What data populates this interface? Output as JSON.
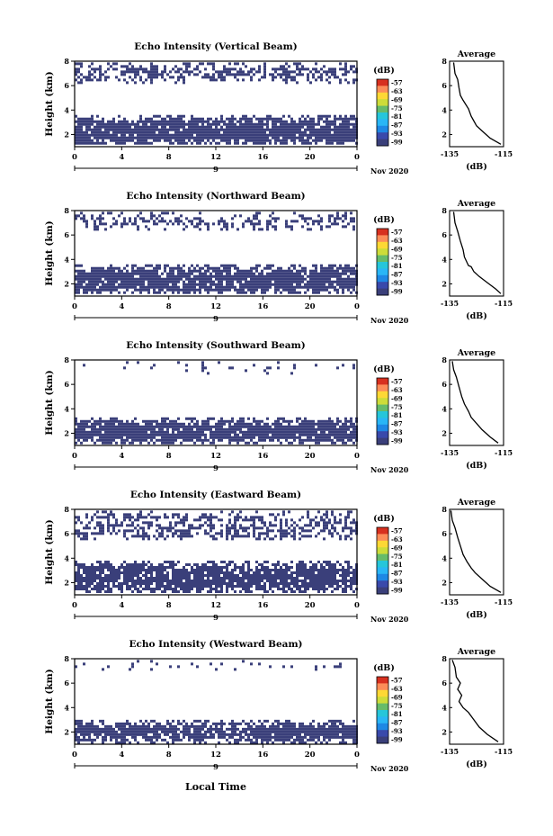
{
  "figure": {
    "xlabel_bottom": "Local Time",
    "date_label": "Nov 2020",
    "day_label": "9",
    "colorbar_unit": "(dB)",
    "colorbar_ticks": [
      "-57",
      "-63",
      "-69",
      "-75",
      "-81",
      "-87",
      "-93",
      "-99"
    ],
    "colorbar_colors": [
      "#d7301f",
      "#fc8d59",
      "#fdd835",
      "#cddc39",
      "#66bb6a",
      "#26c6da",
      "#29b6f6",
      "#1e88e5",
      "#3949ab",
      "#3a3f7a"
    ],
    "echo_color": "#3a3f7a",
    "profile_title": "Average",
    "profile_xticks": [
      "-135",
      "-115"
    ],
    "profile_xlabel": "(dB)"
  },
  "chart_data": [
    {
      "type": "heatmap",
      "title": "Echo Intensity (Vertical Beam)",
      "ylabel": "Height (km)",
      "x_ticks": [
        "0",
        "4",
        "8",
        "12",
        "16",
        "20",
        "0"
      ],
      "y_ticks": [
        "2",
        "4",
        "6",
        "8"
      ],
      "xlim": [
        0,
        24
      ],
      "ylim": [
        1,
        8
      ],
      "echo_layers": [
        {
          "y0": 1.2,
          "y1": 3.6,
          "density": 0.9
        },
        {
          "y0": 6.3,
          "y1": 7.9,
          "density": 0.55
        }
      ],
      "profile": {
        "xlim": [
          -135,
          -115
        ],
        "ylim": [
          1,
          8
        ],
        "x": [
          -133.5,
          -133,
          -132,
          -131.5,
          -131,
          -130,
          -128,
          -127,
          -126,
          -125,
          -123,
          -120,
          -116
        ],
        "y": [
          7.9,
          7.0,
          6.5,
          5.8,
          5.2,
          4.8,
          4.1,
          3.5,
          3.1,
          2.7,
          2.3,
          1.7,
          1.2
        ]
      }
    },
    {
      "type": "heatmap",
      "title": "Echo Intensity (Northward Beam)",
      "ylabel": "Height (km)",
      "x_ticks": [
        "0",
        "4",
        "8",
        "12",
        "16",
        "20",
        "0"
      ],
      "y_ticks": [
        "2",
        "4",
        "6",
        "8"
      ],
      "xlim": [
        0,
        24
      ],
      "ylim": [
        1,
        8
      ],
      "echo_layers": [
        {
          "y0": 1.2,
          "y1": 3.6,
          "density": 0.9
        },
        {
          "y0": 6.5,
          "y1": 7.9,
          "density": 0.45
        }
      ],
      "profile": {
        "xlim": [
          -135,
          -115
        ],
        "ylim": [
          1,
          8
        ],
        "x": [
          -133.5,
          -133,
          -132,
          -131,
          -130,
          -129.5,
          -128,
          -127,
          -126,
          -124,
          -121,
          -118,
          -116
        ],
        "y": [
          7.9,
          7.0,
          6.3,
          5.5,
          4.8,
          4.2,
          3.5,
          3.4,
          3.0,
          2.6,
          2.1,
          1.6,
          1.2
        ]
      }
    },
    {
      "type": "heatmap",
      "title": "Echo Intensity (Southward Beam)",
      "ylabel": "Height (km)",
      "x_ticks": [
        "0",
        "4",
        "8",
        "12",
        "16",
        "20",
        "0"
      ],
      "y_ticks": [
        "2",
        "4",
        "6",
        "8"
      ],
      "xlim": [
        0,
        24
      ],
      "ylim": [
        1,
        8
      ],
      "echo_layers": [
        {
          "y0": 1.2,
          "y1": 3.3,
          "density": 0.92
        },
        {
          "y0": 7.0,
          "y1": 7.9,
          "density": 0.12
        }
      ],
      "profile": {
        "xlim": [
          -135,
          -115
        ],
        "ylim": [
          1,
          8
        ],
        "x": [
          -134,
          -133.5,
          -132.5,
          -131.5,
          -130.5,
          -129.5,
          -128,
          -127,
          -125,
          -123,
          -120,
          -117
        ],
        "y": [
          7.9,
          7.2,
          6.6,
          5.8,
          5.0,
          4.4,
          3.8,
          3.3,
          2.8,
          2.3,
          1.7,
          1.2
        ]
      }
    },
    {
      "type": "heatmap",
      "title": "Echo Intensity (Eastward Beam)",
      "ylabel": "Height (km)",
      "x_ticks": [
        "0",
        "4",
        "8",
        "12",
        "16",
        "20",
        "0"
      ],
      "y_ticks": [
        "2",
        "4",
        "6",
        "8"
      ],
      "xlim": [
        0,
        24
      ],
      "ylim": [
        1,
        8
      ],
      "echo_layers": [
        {
          "y0": 1.2,
          "y1": 3.8,
          "density": 0.88
        },
        {
          "y0": 5.5,
          "y1": 7.9,
          "density": 0.5
        }
      ],
      "profile": {
        "xlim": [
          -135,
          -115
        ],
        "ylim": [
          1,
          8
        ],
        "x": [
          -134.5,
          -134,
          -133,
          -132,
          -131,
          -130,
          -128.5,
          -127,
          -125.5,
          -123,
          -120,
          -116
        ],
        "y": [
          7.9,
          7.1,
          6.5,
          5.7,
          5.0,
          4.3,
          3.7,
          3.2,
          2.8,
          2.3,
          1.7,
          1.2
        ]
      }
    },
    {
      "type": "heatmap",
      "title": "Echo Intensity (Westward Beam)",
      "ylabel": "Height (km)",
      "x_ticks": [
        "0",
        "4",
        "8",
        "12",
        "16",
        "20",
        "0"
      ],
      "y_ticks": [
        "2",
        "4",
        "6",
        "8"
      ],
      "xlim": [
        0,
        24
      ],
      "ylim": [
        1,
        8
      ],
      "echo_layers": [
        {
          "y0": 1.2,
          "y1": 3.0,
          "density": 0.9
        },
        {
          "y0": 7.2,
          "y1": 7.9,
          "density": 0.15
        }
      ],
      "profile": {
        "xlim": [
          -135,
          -115
        ],
        "ylim": [
          1,
          8
        ],
        "x": [
          -134,
          -133,
          -132.5,
          -131,
          -132,
          -130.5,
          -131.5,
          -130,
          -128,
          -126,
          -124,
          -121,
          -117
        ],
        "y": [
          7.9,
          7.3,
          6.5,
          6.0,
          5.5,
          5.0,
          4.5,
          4.0,
          3.6,
          3.0,
          2.4,
          1.8,
          1.2
        ]
      }
    }
  ]
}
